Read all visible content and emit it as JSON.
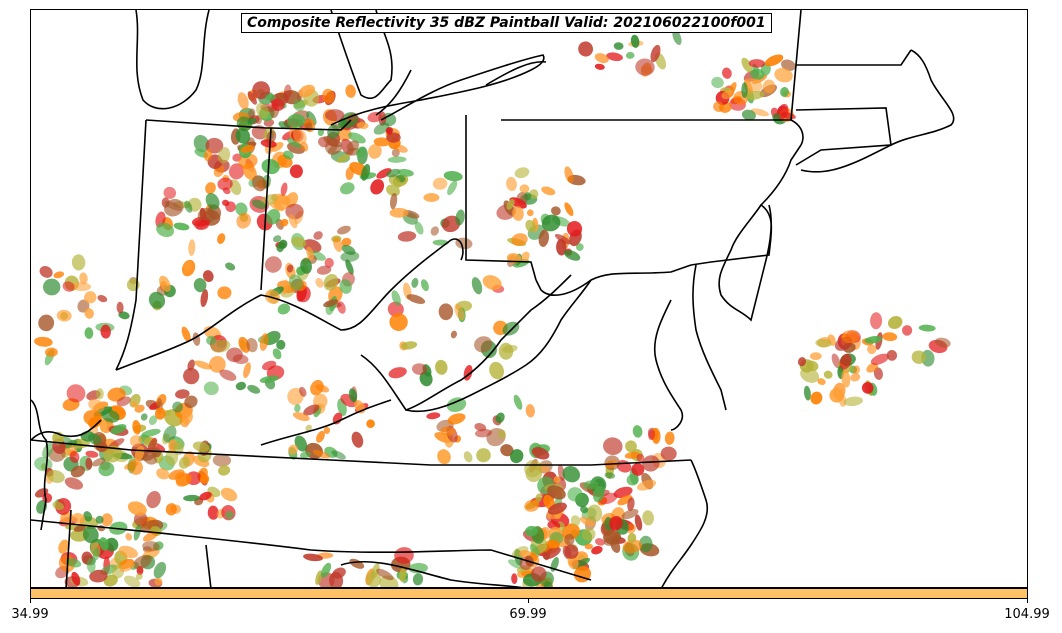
{
  "title": "Composite Reflectivity 35 dBZ Paintball Valid: 202106022100f001",
  "colorbar": {
    "color": "#ffc266",
    "ticks": [
      "34.99",
      "69.99",
      "104.99"
    ]
  },
  "palette": [
    "#ff7f00",
    "#e41a1c",
    "#4daf4a",
    "#a65628",
    "#b5b33a",
    "#ff9f33",
    "#c0392b",
    "#2e8b2e"
  ],
  "map_lines_color": "#000000"
}
